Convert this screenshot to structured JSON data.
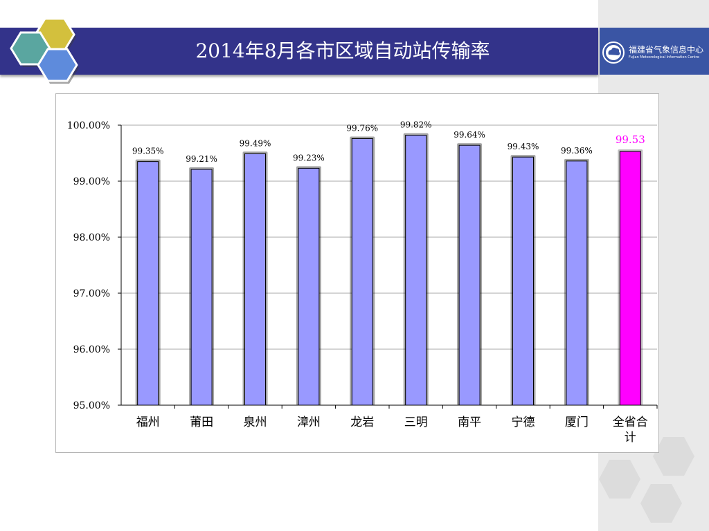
{
  "slide": {
    "title": "2014年8月各市区域自动站传输率",
    "logo": {
      "name_cn": "福建省气象信息中心",
      "name_en": "Fujian Meteorological Information Centre",
      "icon": "cloud-seal-icon"
    }
  },
  "colors": {
    "title_bar": "#33338a",
    "bar": "#9999ff",
    "highlight_bar": "#ff00ff",
    "highlight_label": "#ff00ff",
    "hex_teal": "#5aa6a0",
    "hex_gold": "#d3c03d",
    "hex_blue": "#5e8bdc",
    "hex_gray": "#dcdcdc"
  },
  "chart_data": {
    "type": "bar",
    "title": "",
    "xlabel": "",
    "ylabel": "",
    "categories": [
      "福州",
      "莆田",
      "泉州",
      "漳州",
      "龙岩",
      "三明",
      "南平",
      "宁德",
      "厦门",
      "全省合计"
    ],
    "values": [
      99.35,
      99.21,
      99.49,
      99.23,
      99.76,
      99.82,
      99.64,
      99.43,
      99.36,
      99.53
    ],
    "data_labels": [
      "99.35%",
      "99.21%",
      "99.49%",
      "99.23%",
      "99.76%",
      "99.82%",
      "99.64%",
      "99.43%",
      "99.36%",
      "99.53"
    ],
    "highlight_index": 9,
    "ylim": [
      95,
      100
    ],
    "yticks": [
      95,
      96,
      97,
      98,
      99,
      100
    ],
    "ytick_labels": [
      "95.00%",
      "96.00%",
      "97.00%",
      "98.00%",
      "99.00%",
      "100.00%"
    ],
    "grid": true,
    "legend": "none"
  }
}
